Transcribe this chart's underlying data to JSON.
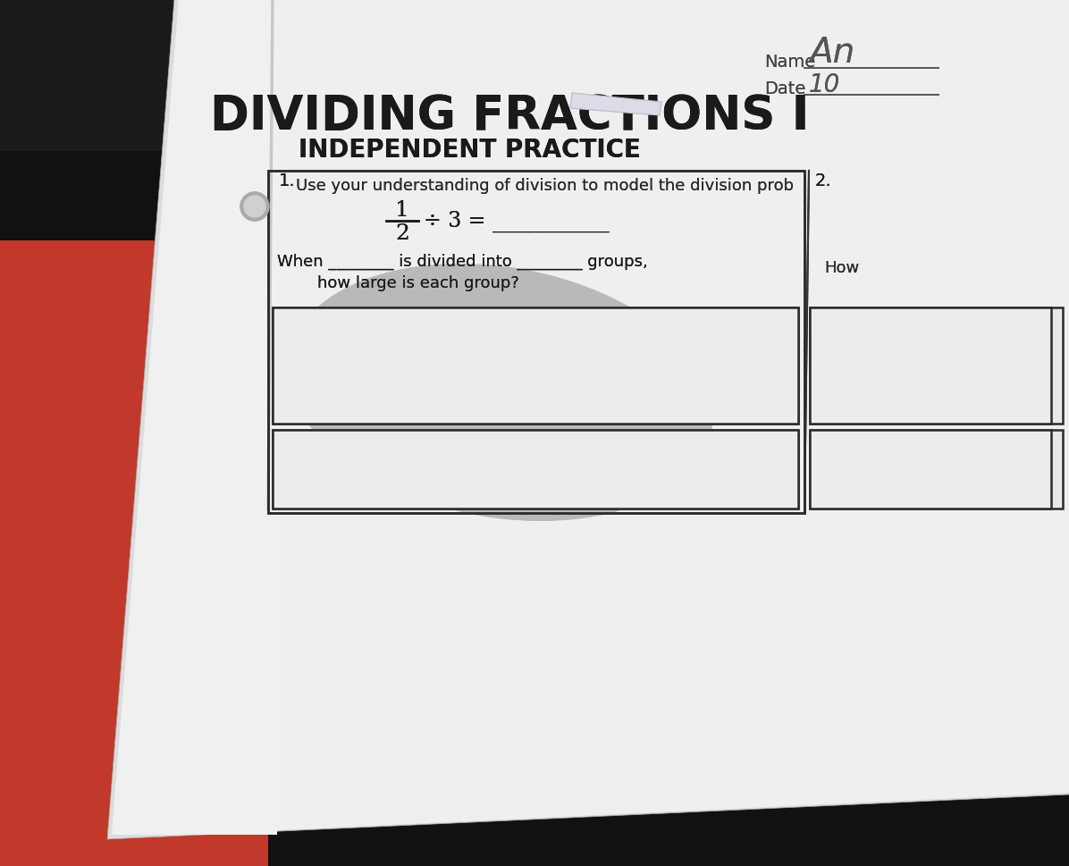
{
  "bg_dark": "#111111",
  "bg_red": "#c0392b",
  "paper_fill": "#e8e8e8",
  "paper_fill2": "#f0eeec",
  "title_main": "DIVIDING FRACTIONS I",
  "title_sub": "INDEPENDENT PRACTICE",
  "instructions": "Use your understanding of division to model the division prob",
  "name_label": "Name",
  "date_label": "Date",
  "name_value": "An",
  "date_value": "10",
  "problem1": "1.",
  "problem2": "2.",
  "fraction_num": "1",
  "fraction_den": "2",
  "div_eq": "÷ 3 = ___________",
  "when_line1": "When ________ is divided into ________ groups,",
  "when_line2": "how large is each group?",
  "how_right": "How",
  "text_color": "#1a1a1a",
  "border_color": "#2a2a2a",
  "shadow_color": "#999999",
  "tape_color": "#dcdce8"
}
